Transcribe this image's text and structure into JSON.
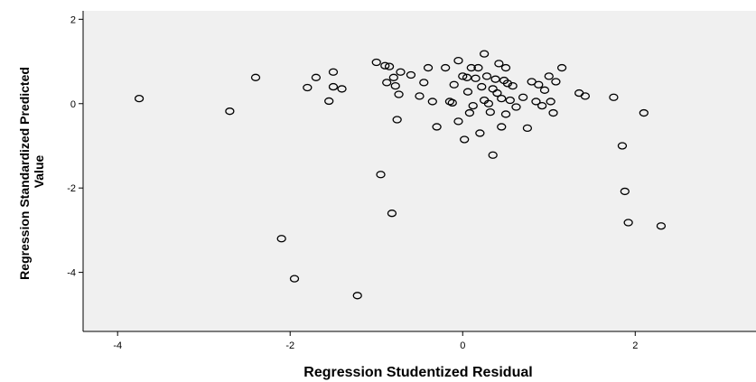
{
  "chart_data": {
    "type": "scatter",
    "title": "",
    "xlabel": "Regression Studentized Residual",
    "ylabel_line1": "Regression Standardized Predicted",
    "ylabel_line2": "Value",
    "xlim": [
      -4.4,
      3.4
    ],
    "ylim": [
      -5.4,
      2.2
    ],
    "x_ticks": [
      -4,
      -2,
      0,
      2
    ],
    "y_ticks": [
      2,
      0,
      -2,
      -4
    ],
    "x_tick_labels": [
      "-4",
      "-2",
      "0",
      "2"
    ],
    "y_tick_labels": [
      "2",
      "0",
      "-2",
      "-4"
    ],
    "grid": false,
    "plot_background": "#f0f0f0",
    "marker_color": "#000000",
    "points": [
      [
        -3.75,
        0.12
      ],
      [
        -2.7,
        -0.18
      ],
      [
        -2.4,
        0.62
      ],
      [
        -2.1,
        -3.2
      ],
      [
        -1.95,
        -4.15
      ],
      [
        -1.8,
        0.38
      ],
      [
        -1.7,
        0.62
      ],
      [
        -1.55,
        0.06
      ],
      [
        -1.5,
        0.75
      ],
      [
        -1.5,
        0.4
      ],
      [
        -1.4,
        0.35
      ],
      [
        -1.22,
        -4.55
      ],
      [
        -1.0,
        0.98
      ],
      [
        -0.95,
        -1.68
      ],
      [
        -0.9,
        0.9
      ],
      [
        -0.88,
        0.5
      ],
      [
        -0.85,
        0.88
      ],
      [
        -0.82,
        -2.6
      ],
      [
        -0.8,
        0.62
      ],
      [
        -0.78,
        0.42
      ],
      [
        -0.76,
        -0.38
      ],
      [
        -0.74,
        0.22
      ],
      [
        -0.72,
        0.75
      ],
      [
        -0.6,
        0.68
      ],
      [
        -0.5,
        0.18
      ],
      [
        -0.45,
        0.5
      ],
      [
        -0.4,
        0.85
      ],
      [
        -0.35,
        0.05
      ],
      [
        -0.3,
        -0.55
      ],
      [
        -0.2,
        0.85
      ],
      [
        -0.15,
        0.05
      ],
      [
        -0.12,
        0.02
      ],
      [
        -0.1,
        0.45
      ],
      [
        -0.05,
        1.02
      ],
      [
        -0.05,
        -0.42
      ],
      [
        0.0,
        0.65
      ],
      [
        0.02,
        -0.85
      ],
      [
        0.05,
        0.62
      ],
      [
        0.06,
        0.28
      ],
      [
        0.08,
        -0.22
      ],
      [
        0.1,
        0.85
      ],
      [
        0.12,
        -0.05
      ],
      [
        0.15,
        0.6
      ],
      [
        0.18,
        0.85
      ],
      [
        0.2,
        -0.7
      ],
      [
        0.22,
        0.4
      ],
      [
        0.25,
        1.18
      ],
      [
        0.25,
        0.08
      ],
      [
        0.28,
        0.65
      ],
      [
        0.3,
        0.0
      ],
      [
        0.32,
        -0.2
      ],
      [
        0.35,
        0.35
      ],
      [
        0.35,
        -1.22
      ],
      [
        0.38,
        0.58
      ],
      [
        0.4,
        0.25
      ],
      [
        0.42,
        0.95
      ],
      [
        0.45,
        0.12
      ],
      [
        0.45,
        -0.55
      ],
      [
        0.48,
        0.55
      ],
      [
        0.5,
        -0.25
      ],
      [
        0.5,
        0.85
      ],
      [
        0.52,
        0.48
      ],
      [
        0.55,
        0.08
      ],
      [
        0.58,
        0.42
      ],
      [
        0.62,
        -0.08
      ],
      [
        0.7,
        0.15
      ],
      [
        0.75,
        -0.58
      ],
      [
        0.8,
        0.52
      ],
      [
        0.85,
        0.05
      ],
      [
        0.88,
        0.45
      ],
      [
        0.92,
        -0.05
      ],
      [
        0.95,
        0.32
      ],
      [
        1.0,
        0.65
      ],
      [
        1.02,
        0.05
      ],
      [
        1.05,
        -0.22
      ],
      [
        1.08,
        0.52
      ],
      [
        1.15,
        0.85
      ],
      [
        1.35,
        0.25
      ],
      [
        1.42,
        0.18
      ],
      [
        1.75,
        0.15
      ],
      [
        1.85,
        -1.0
      ],
      [
        1.88,
        -2.08
      ],
      [
        1.92,
        -2.82
      ],
      [
        2.1,
        -0.22
      ],
      [
        2.3,
        -2.9
      ]
    ]
  }
}
